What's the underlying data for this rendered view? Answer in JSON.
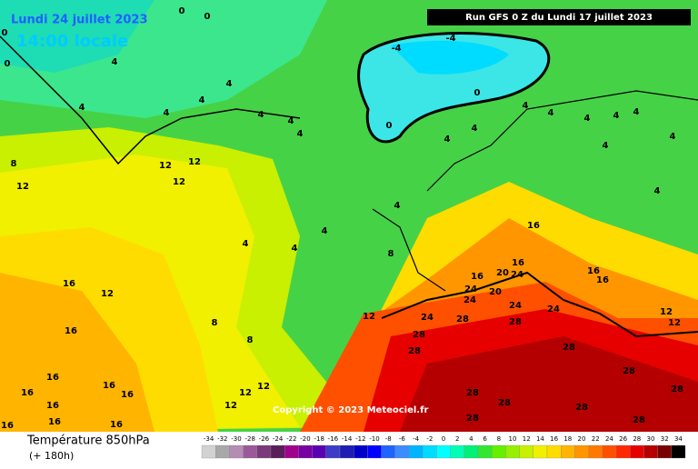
{
  "header": {
    "date": "Lundi 24 juillet 2023",
    "time": "14:00 locale",
    "run": "Run GFS 0 Z du Lundi 17 juillet 2023"
  },
  "copyright": "Copyright © 2023 Meteociel.fr",
  "legend": {
    "title": "Température 850hPa",
    "lead": "(+ 180h)",
    "values": [
      -34,
      -32,
      -30,
      -28,
      -26,
      -24,
      -22,
      -20,
      -18,
      -16,
      -14,
      -12,
      -10,
      -8,
      -6,
      -4,
      -2,
      0,
      2,
      4,
      6,
      8,
      10,
      12,
      14,
      16,
      18,
      20,
      22,
      24,
      26,
      28,
      30,
      32,
      34
    ],
    "colors": [
      "#d2d2d2",
      "#a8a8a8",
      "#b48cb4",
      "#9a5a9a",
      "#7a3a7a",
      "#5a1e5a",
      "#a0008c",
      "#7800a0",
      "#5a00b4",
      "#3c3cc8",
      "#1e1eb4",
      "#0000c8",
      "#0000ff",
      "#1e64ff",
      "#3c8cff",
      "#00b4ff",
      "#00dcff",
      "#00ffff",
      "#00ffb4",
      "#00f078",
      "#32e632",
      "#64f000",
      "#96f000",
      "#c8f000",
      "#f0f000",
      "#ffdc00",
      "#ffb400",
      "#ff9600",
      "#ff7800",
      "#ff5000",
      "#ff2800",
      "#e60000",
      "#b40000",
      "#780000",
      "#000000"
    ]
  },
  "contour_labels": [
    0,
    0,
    0,
    0,
    -4,
    -4,
    0,
    0,
    4,
    4,
    4,
    4,
    4,
    4,
    4,
    4,
    4,
    4,
    4,
    4,
    4,
    4,
    4,
    4,
    4,
    4,
    8,
    12,
    12,
    12,
    12,
    4,
    4,
    4,
    4,
    8,
    16,
    16,
    16,
    20,
    24,
    24,
    20,
    24,
    24,
    24,
    24,
    28,
    28,
    28,
    28,
    28,
    28,
    28,
    28,
    28,
    28,
    28,
    28,
    16,
    12,
    16,
    16,
    16,
    16,
    16,
    16,
    16,
    16,
    12,
    12,
    12,
    12,
    8,
    8,
    12,
    12,
    16,
    16,
    16
  ]
}
